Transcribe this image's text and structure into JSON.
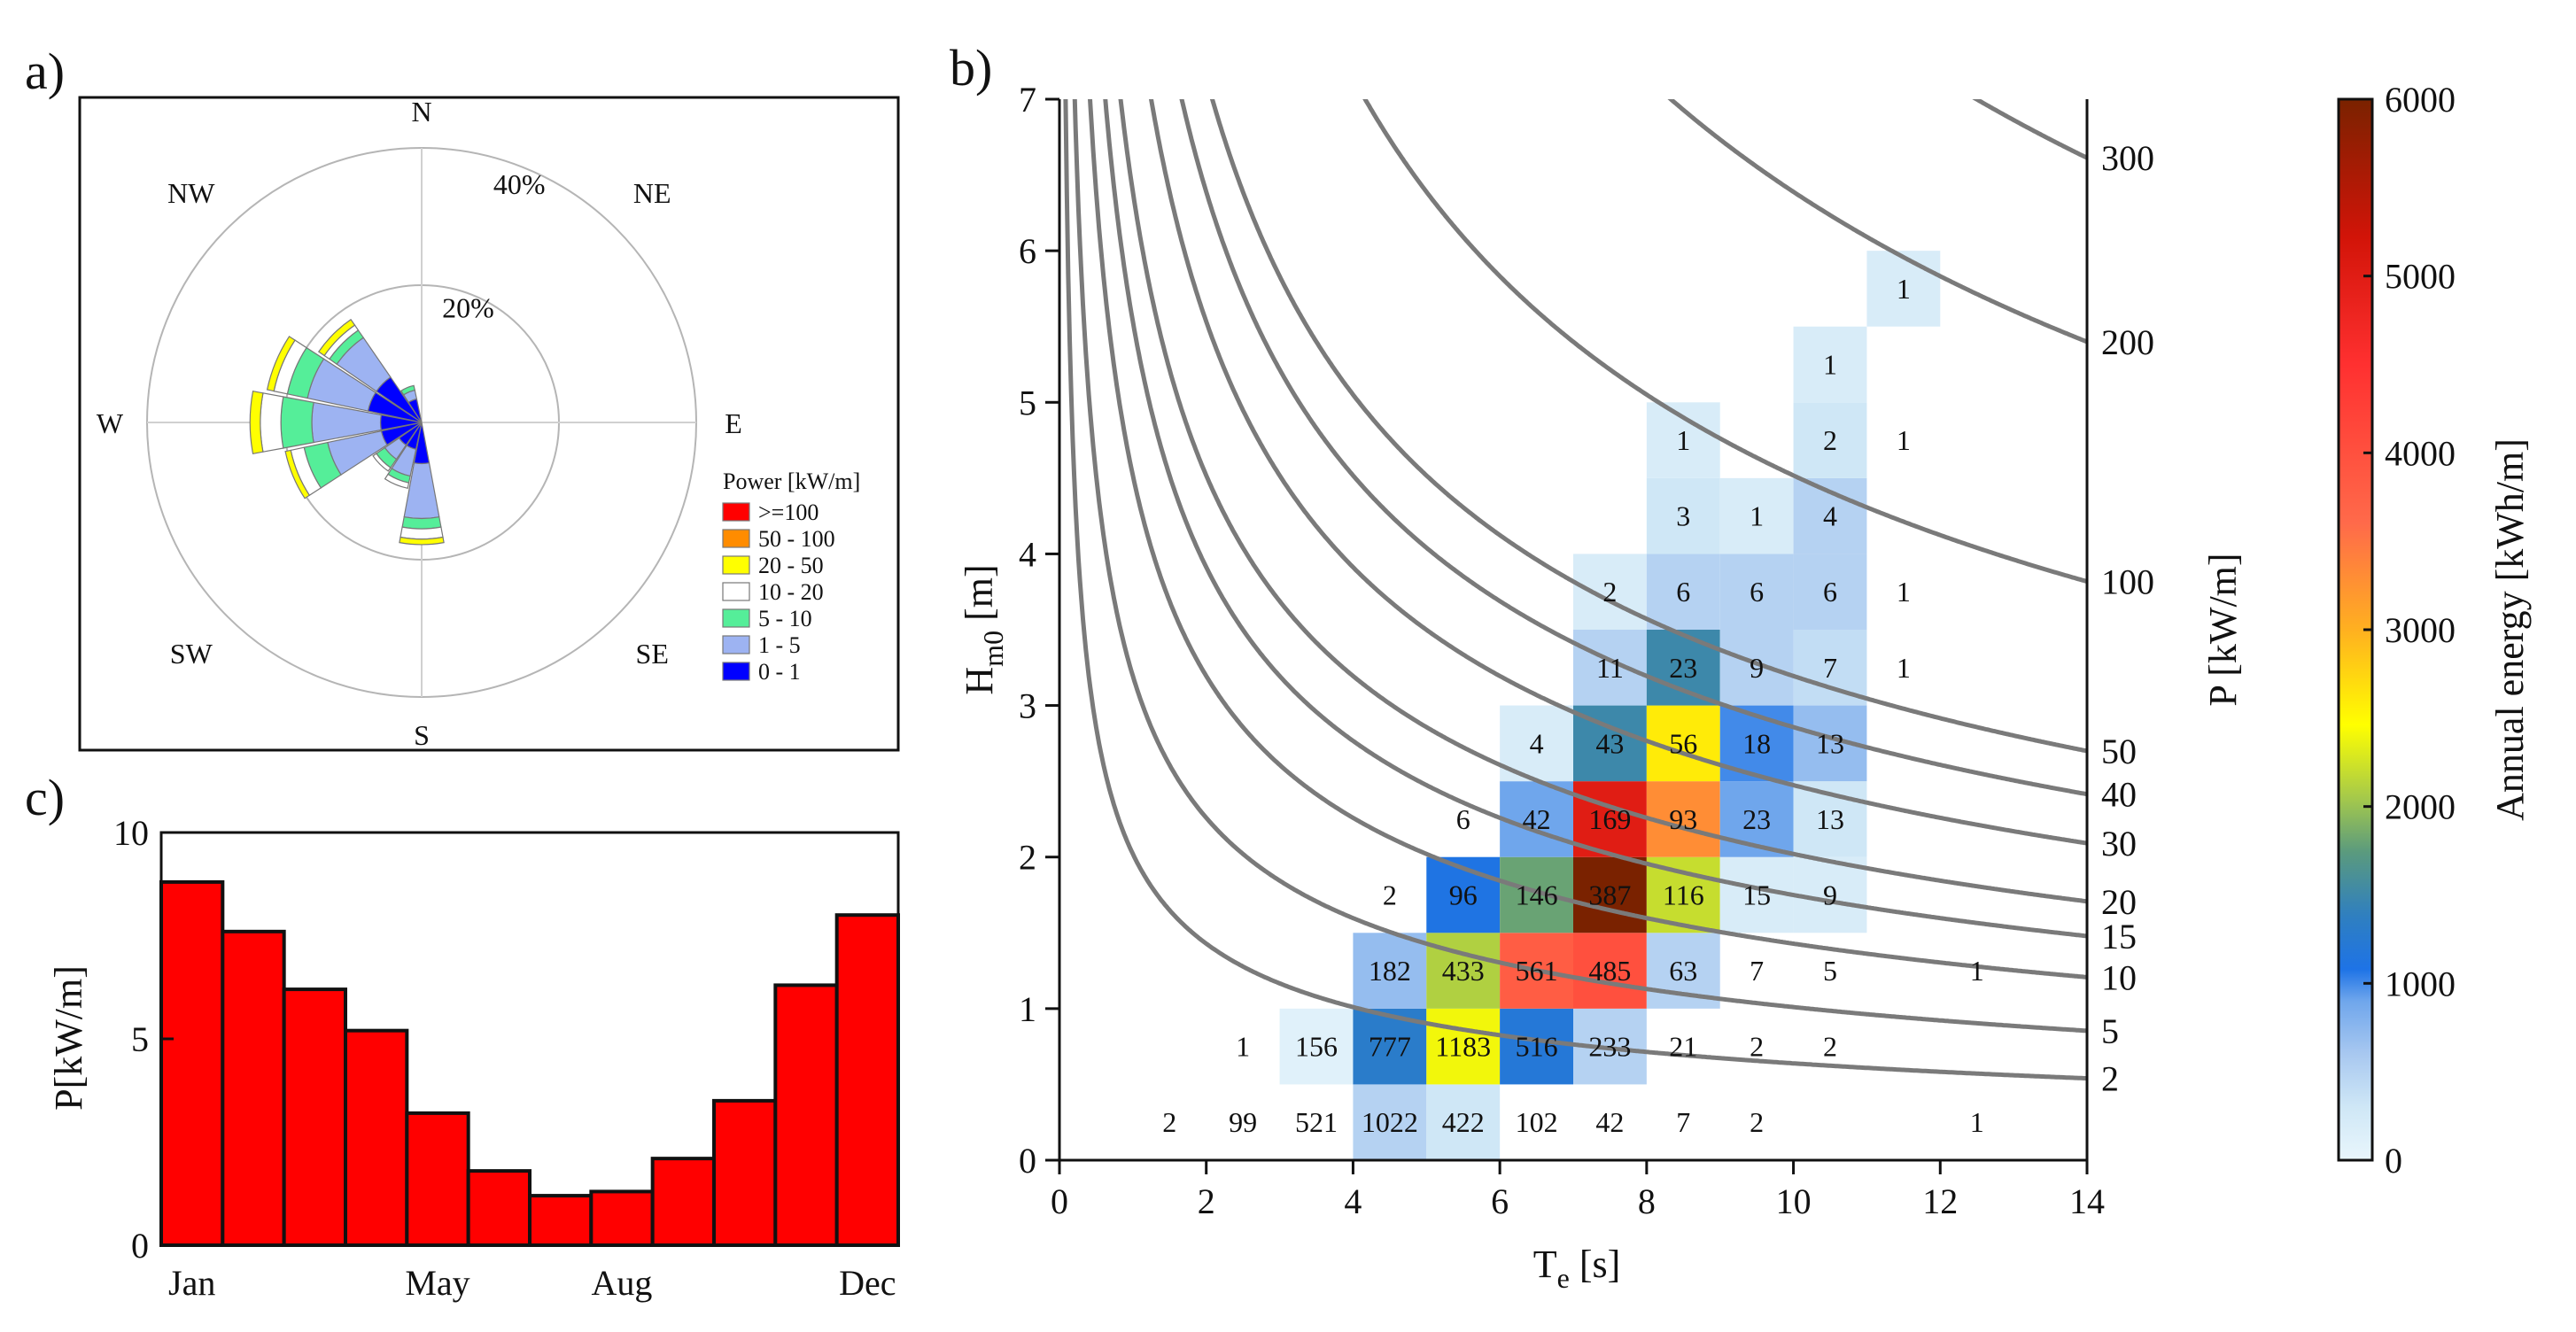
{
  "panel_labels": {
    "a": "a)",
    "b": "b)",
    "c": "c)"
  },
  "chart_data": [
    {
      "id": "wave-rose",
      "type": "polar-bar",
      "directions": [
        "N",
        "NE",
        "E",
        "SE",
        "S",
        "SW",
        "W",
        "NW"
      ],
      "radial_ticks": [
        {
          "value": 20,
          "label": "20%"
        },
        {
          "value": 40,
          "label": "40%"
        }
      ],
      "r_max": 40,
      "legend_title": "Power [kW/m]",
      "bins": [
        {
          "label": ">=100",
          "color": "#ff0000"
        },
        {
          "label": "50 - 100",
          "color": "#ff8c00"
        },
        {
          "label": "20 - 50",
          "color": "#ffff00"
        },
        {
          "label": "10 - 20",
          "color": "#ffffff"
        },
        {
          "label": "5 - 10",
          "color": "#55ee99"
        },
        {
          "label": "1 - 5",
          "color": "#9db3f2"
        },
        {
          "label": "0 - 1",
          "color": "#0000ff"
        }
      ],
      "sectors": [
        {
          "dir_deg": 180,
          "cumulative": [
            6,
            14,
            15.5,
            17,
            17.8
          ]
        },
        {
          "dir_deg": 202.5,
          "cumulative": [
            4,
            8,
            9,
            9.8
          ]
        },
        {
          "dir_deg": 225,
          "cumulative": [
            4,
            6.5,
            8,
            8.6
          ]
        },
        {
          "dir_deg": 247.5,
          "cumulative": [
            6,
            14,
            17.5,
            19.5,
            20.3
          ]
        },
        {
          "dir_deg": 270,
          "cumulative": [
            6,
            16,
            20.5,
            23.5,
            25
          ]
        },
        {
          "dir_deg": 292.5,
          "cumulative": [
            8,
            17,
            20,
            22,
            23
          ]
        },
        {
          "dir_deg": 315,
          "cumulative": [
            8,
            15,
            16.3,
            17.2,
            18.2
          ]
        },
        {
          "dir_deg": 337.5,
          "cumulative": [
            3.5,
            4.8,
            5.5
          ]
        }
      ]
    },
    {
      "id": "energy-scatter",
      "type": "heatmap",
      "xlabel_main": "T",
      "xlabel_sub": "e",
      "xlabel_unit": " [s]",
      "ylabel_main": "H",
      "ylabel_sub": "m0",
      "ylabel_unit": " [m]",
      "right_label": "P [kW/m]",
      "xlim": [
        0,
        14
      ],
      "ylim": [
        0,
        7
      ],
      "xticks": [
        0,
        2,
        4,
        6,
        8,
        10,
        12,
        14
      ],
      "yticks": [
        0,
        1,
        2,
        3,
        4,
        5,
        6,
        7
      ],
      "bin_width": 1,
      "bin_height": 0.5,
      "cells": [
        {
          "x": 1.5,
          "y": 0.25,
          "v": 2
        },
        {
          "x": 2.5,
          "y": 0.25,
          "v": 99
        },
        {
          "x": 3.5,
          "y": 0.25,
          "v": 521
        },
        {
          "x": 4.5,
          "y": 0.25,
          "v": 1022
        },
        {
          "x": 5.5,
          "y": 0.25,
          "v": 422
        },
        {
          "x": 6.5,
          "y": 0.25,
          "v": 102
        },
        {
          "x": 7.5,
          "y": 0.25,
          "v": 42
        },
        {
          "x": 8.5,
          "y": 0.25,
          "v": 7
        },
        {
          "x": 9.5,
          "y": 0.25,
          "v": 2
        },
        {
          "x": 12.5,
          "y": 0.25,
          "v": 1
        },
        {
          "x": 2.5,
          "y": 0.75,
          "v": 1
        },
        {
          "x": 3.5,
          "y": 0.75,
          "v": 156
        },
        {
          "x": 4.5,
          "y": 0.75,
          "v": 777
        },
        {
          "x": 5.5,
          "y": 0.75,
          "v": 1183
        },
        {
          "x": 6.5,
          "y": 0.75,
          "v": 516
        },
        {
          "x": 7.5,
          "y": 0.75,
          "v": 233
        },
        {
          "x": 8.5,
          "y": 0.75,
          "v": 21
        },
        {
          "x": 9.5,
          "y": 0.75,
          "v": 2
        },
        {
          "x": 10.5,
          "y": 0.75,
          "v": 2
        },
        {
          "x": 4.5,
          "y": 1.25,
          "v": 182
        },
        {
          "x": 5.5,
          "y": 1.25,
          "v": 433
        },
        {
          "x": 6.5,
          "y": 1.25,
          "v": 561
        },
        {
          "x": 7.5,
          "y": 1.25,
          "v": 485
        },
        {
          "x": 8.5,
          "y": 1.25,
          "v": 63
        },
        {
          "x": 9.5,
          "y": 1.25,
          "v": 7
        },
        {
          "x": 10.5,
          "y": 1.25,
          "v": 5
        },
        {
          "x": 12.5,
          "y": 1.25,
          "v": 1
        },
        {
          "x": 4.5,
          "y": 1.75,
          "v": 2
        },
        {
          "x": 5.5,
          "y": 1.75,
          "v": 96
        },
        {
          "x": 6.5,
          "y": 1.75,
          "v": 146
        },
        {
          "x": 7.5,
          "y": 1.75,
          "v": 387
        },
        {
          "x": 8.5,
          "y": 1.75,
          "v": 116
        },
        {
          "x": 9.5,
          "y": 1.75,
          "v": 15
        },
        {
          "x": 10.5,
          "y": 1.75,
          "v": 9
        },
        {
          "x": 5.5,
          "y": 2.25,
          "v": 6
        },
        {
          "x": 6.5,
          "y": 2.25,
          "v": 42
        },
        {
          "x": 7.5,
          "y": 2.25,
          "v": 169
        },
        {
          "x": 8.5,
          "y": 2.25,
          "v": 93
        },
        {
          "x": 9.5,
          "y": 2.25,
          "v": 23
        },
        {
          "x": 10.5,
          "y": 2.25,
          "v": 13
        },
        {
          "x": 6.5,
          "y": 2.75,
          "v": 4
        },
        {
          "x": 7.5,
          "y": 2.75,
          "v": 43
        },
        {
          "x": 8.5,
          "y": 2.75,
          "v": 56
        },
        {
          "x": 9.5,
          "y": 2.75,
          "v": 18
        },
        {
          "x": 10.5,
          "y": 2.75,
          "v": 13
        },
        {
          "x": 7.5,
          "y": 3.25,
          "v": 11
        },
        {
          "x": 8.5,
          "y": 3.25,
          "v": 23
        },
        {
          "x": 9.5,
          "y": 3.25,
          "v": 9
        },
        {
          "x": 10.5,
          "y": 3.25,
          "v": 7
        },
        {
          "x": 11.5,
          "y": 3.25,
          "v": 1
        },
        {
          "x": 7.5,
          "y": 3.75,
          "v": 2
        },
        {
          "x": 8.5,
          "y": 3.75,
          "v": 6
        },
        {
          "x": 9.5,
          "y": 3.75,
          "v": 6
        },
        {
          "x": 10.5,
          "y": 3.75,
          "v": 6
        },
        {
          "x": 11.5,
          "y": 3.75,
          "v": 1
        },
        {
          "x": 8.5,
          "y": 4.25,
          "v": 3
        },
        {
          "x": 9.5,
          "y": 4.25,
          "v": 1
        },
        {
          "x": 10.5,
          "y": 4.25,
          "v": 4
        },
        {
          "x": 8.5,
          "y": 4.75,
          "v": 1
        },
        {
          "x": 10.5,
          "y": 4.75,
          "v": 2
        },
        {
          "x": 11.5,
          "y": 4.75,
          "v": 1
        },
        {
          "x": 10.5,
          "y": 5.25,
          "v": 1
        },
        {
          "x": 11.5,
          "y": 5.75,
          "v": 1
        }
      ],
      "cell_energy": {
        "1.5,0.25": 0,
        "2.5,0.25": 0,
        "3.5,0.25": 0,
        "4.5,0.25": 500,
        "5.5,0.25": 300,
        "6.5,0.25": 0,
        "7.5,0.25": 0,
        "8.5,0.25": 0,
        "9.5,0.25": 0,
        "12.5,0.25": 0,
        "2.5,0.75": 0,
        "3.5,0.75": 100,
        "4.5,0.75": 1300,
        "5.5,0.75": 2400,
        "6.5,0.75": 1200,
        "7.5,0.75": 500,
        "8.5,0.75": 0,
        "9.5,0.75": 0,
        "10.5,0.75": 0,
        "4.5,1.25": 700,
        "5.5,1.25": 2100,
        "6.5,1.25": 3800,
        "7.5,1.25": 4000,
        "8.5,1.25": 500,
        "9.5,1.25": 0,
        "10.5,1.25": 0,
        "12.5,1.25": 0,
        "4.5,1.75": 0,
        "5.5,1.75": 1100,
        "6.5,1.75": 1800,
        "7.5,1.75": 6000,
        "8.5,1.75": 2200,
        "9.5,1.75": 200,
        "10.5,1.75": 200,
        "5.5,2.25": 0,
        "6.5,2.25": 900,
        "7.5,2.25": 5000,
        "8.5,2.25": 3300,
        "9.5,2.25": 900,
        "10.5,2.25": 300,
        "6.5,2.75": 200,
        "7.5,2.75": 1500,
        "8.5,2.75": 2600,
        "9.5,2.75": 1000,
        "10.5,2.75": 700,
        "7.5,3.25": 500,
        "8.5,3.25": 1500,
        "9.5,3.25": 500,
        "10.5,3.25": 400,
        "11.5,3.25": 0,
        "7.5,3.75": 200,
        "8.5,3.75": 500,
        "9.5,3.75": 500,
        "10.5,3.75": 500,
        "11.5,3.75": 0,
        "8.5,4.25": 300,
        "9.5,4.25": 200,
        "10.5,4.25": 500,
        "8.5,4.75": 200,
        "10.5,4.75": 300,
        "11.5,4.75": 0,
        "10.5,5.25": 200,
        "11.5,5.75": 200
      },
      "power_isolines": [
        2,
        5,
        10,
        15,
        20,
        30,
        40,
        50,
        100,
        200,
        300
      ],
      "isoline_formula": "P = 0.49 * Hm0^2 * Te",
      "colorbar": {
        "label": "Annual energy [kWh/m]",
        "min": 0,
        "max": 6000,
        "ticks": [
          0,
          1000,
          2000,
          3000,
          4000,
          5000,
          6000
        ]
      }
    },
    {
      "id": "monthly-power",
      "type": "bar",
      "ylabel": "P[kW/m]",
      "ylim": [
        0,
        10
      ],
      "yticks": [
        0,
        5,
        10
      ],
      "categories": [
        "Jan",
        "Feb",
        "Mar",
        "Apr",
        "May",
        "Jun",
        "Jul",
        "Aug",
        "Sep",
        "Oct",
        "Nov",
        "Dec"
      ],
      "shown_tick_labels": [
        "Jan",
        "May",
        "Aug",
        "Dec"
      ],
      "values": [
        8.8,
        7.6,
        6.2,
        5.2,
        3.2,
        1.8,
        1.2,
        1.3,
        2.1,
        3.5,
        6.3,
        8.0
      ],
      "bar_color": "#ff0000"
    }
  ]
}
